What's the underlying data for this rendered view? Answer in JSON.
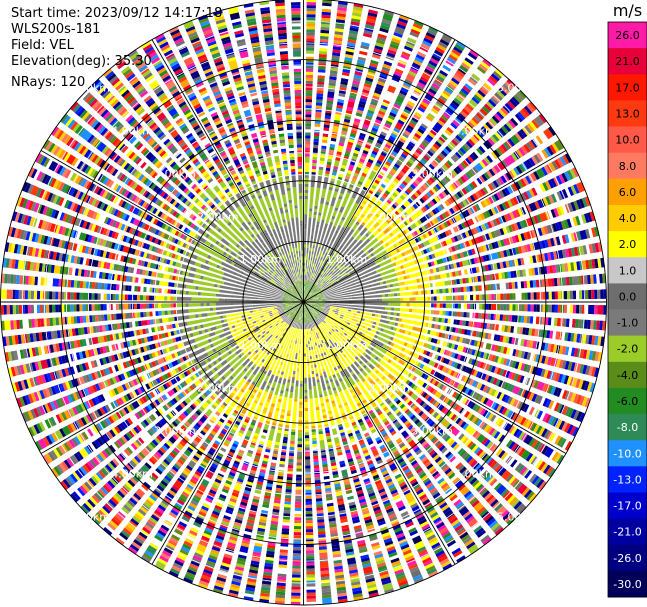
{
  "header": {
    "start_time": "Start time: 2023/09/12 14:17:18",
    "station": "WLS200s-181",
    "field": "Field: VEL",
    "elevation": "Elevation(deg): 35.30",
    "nrays": "NRays: 120"
  },
  "chart_data": {
    "type": "heatmap",
    "projection": "polar-ppi",
    "units": "m/s",
    "range_rings_km": [
      1,
      2,
      3,
      4,
      5
    ],
    "ring_labels": [
      "1.00km",
      "2.00km",
      "3.00km",
      "4.00km",
      "5.00km",
      "1.00km",
      "2.00km",
      "3.00km",
      "4.00km",
      "5.00km",
      "1.00km",
      "2.00km",
      "3.00km",
      "4.00km",
      "5.00km",
      "1.00km",
      "2.00km",
      "3.00km",
      "4.00km",
      "5.00km"
    ],
    "max_range_km": 5,
    "n_rays": 120,
    "colorbar": {
      "title": "m/s",
      "ticks": [
        "26.0",
        "21.0",
        "17.0",
        "13.0",
        "10.0",
        "8.0",
        "6.0",
        "4.0",
        "2.0",
        "1.0",
        "0.0",
        "-1.0",
        "-2.0",
        "-4.0",
        "-6.0",
        "-8.0",
        "-10.0",
        "-13.0",
        "-17.0",
        "-21.0",
        "-26.0",
        "-30.0"
      ],
      "colors": [
        "#ff1aa8",
        "#e8003a",
        "#ff1800",
        "#ff3a10",
        "#ff5a48",
        "#ff7a60",
        "#ffa000",
        "#ffcc00",
        "#ffff00",
        "#c8c8c8",
        "#6e6e6e",
        "#7a7a7a",
        "#9ccc2a",
        "#5a8c1a",
        "#228b22",
        "#2e8b57",
        "#1e90ff",
        "#0022ff",
        "#0000cc",
        "#0000a0",
        "#000080",
        "#00005a"
      ]
    },
    "velocity_structure": {
      "inner_green_km": 1.0,
      "gray_band_km": [
        0.35,
        1.3
      ],
      "yellow_sector_deg": [
        100,
        260
      ],
      "green_ring_km": [
        1.4,
        1.9
      ],
      "yellow_arc_km": [
        1.6,
        2.1
      ],
      "noise_start_km": 2.1
    }
  }
}
